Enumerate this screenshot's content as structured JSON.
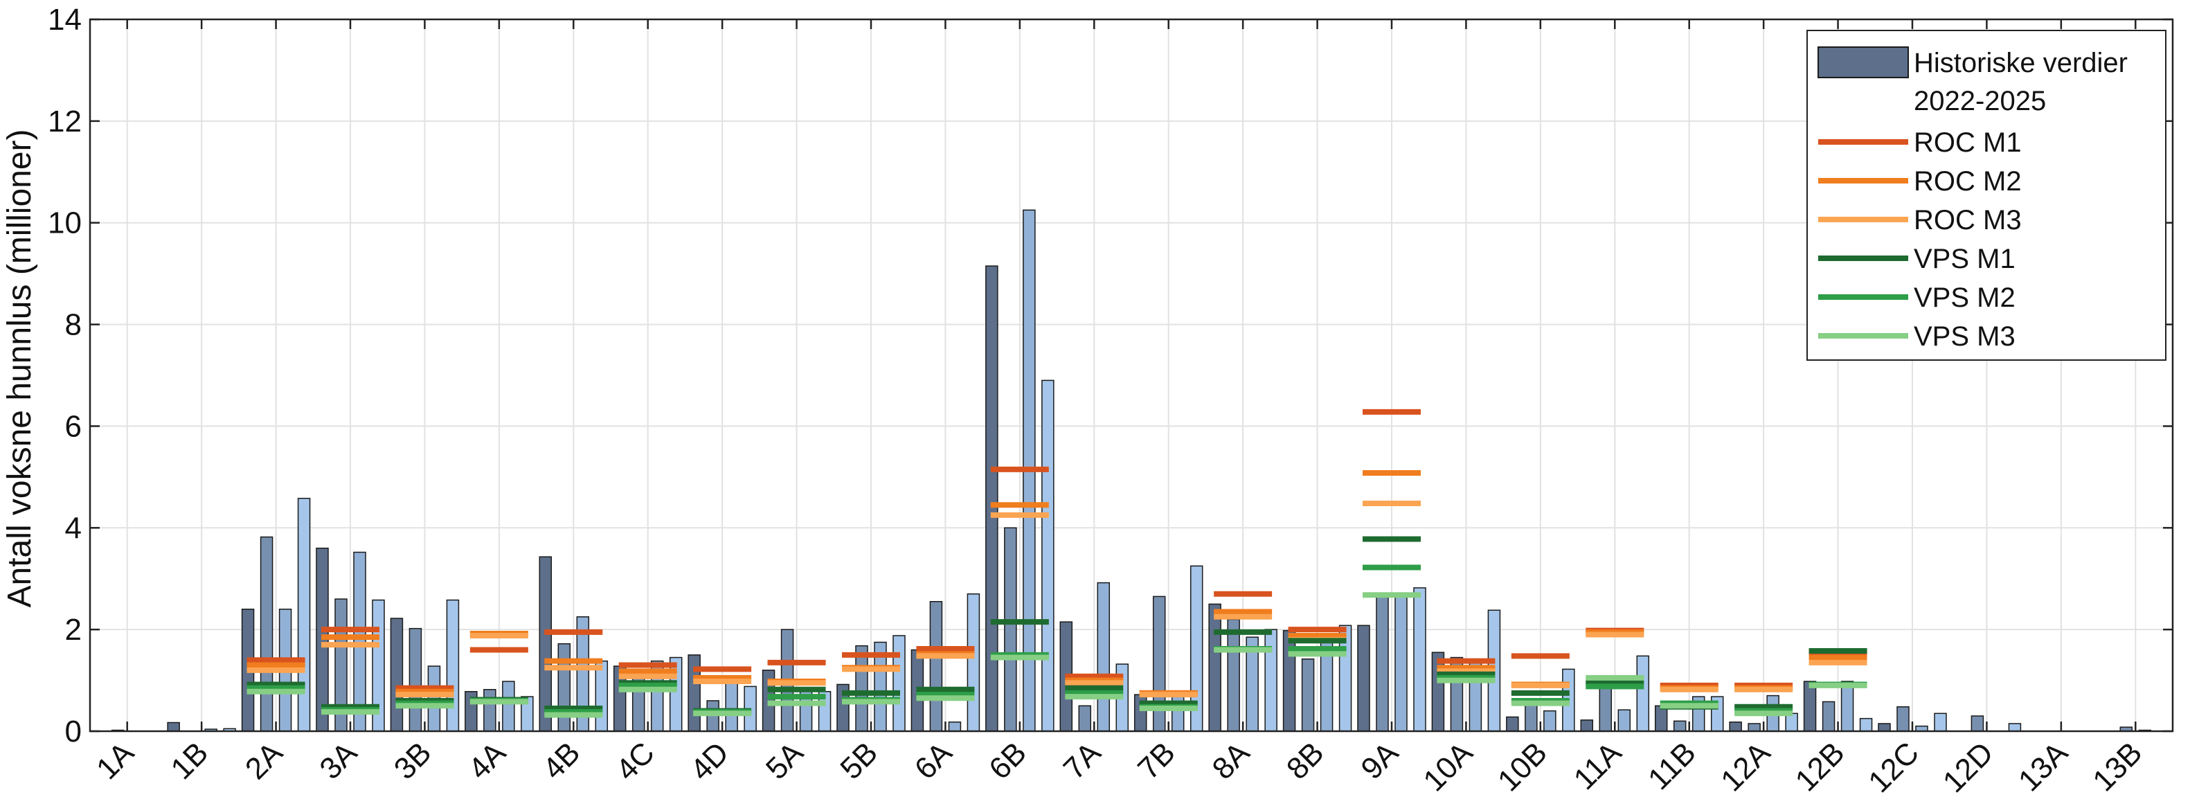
{
  "chart_data": {
    "type": "bar",
    "ylabel": "Antall voksne hunnlus (millioner)",
    "xlabel": "",
    "ylim": [
      0,
      14
    ],
    "yticks": [
      0,
      2,
      4,
      6,
      8,
      10,
      12,
      14
    ],
    "grid": true,
    "legend_position": "top-right",
    "categories": [
      "1A",
      "1B",
      "2A",
      "3A",
      "3B",
      "4A",
      "4B",
      "4C",
      "4D",
      "5A",
      "5B",
      "6A",
      "6B",
      "7A",
      "7B",
      "8A",
      "8B",
      "9A",
      "10A",
      "10B",
      "11A",
      "11B",
      "12A",
      "12B",
      "12C",
      "12D",
      "13A",
      "13B"
    ],
    "historical": {
      "name": "Historiske verdier 2022-2025",
      "years": [
        "2022",
        "2023",
        "2024",
        "2025"
      ],
      "values": [
        [
          0,
          0.02,
          0,
          0
        ],
        [
          0.17,
          0,
          0.04,
          0.05
        ],
        [
          2.4,
          3.82,
          2.4,
          4.58
        ],
        [
          3.6,
          2.6,
          3.52,
          2.58
        ],
        [
          2.22,
          2.02,
          1.28,
          2.58
        ],
        [
          0.78,
          0.82,
          0.98,
          0.68
        ],
        [
          3.43,
          1.72,
          2.25,
          1.38
        ],
        [
          1.28,
          1.2,
          1.38,
          1.45
        ],
        [
          1.5,
          0.6,
          0.95,
          0.88
        ],
        [
          1.2,
          2.0,
          0.82,
          0.78
        ],
        [
          0.92,
          1.68,
          1.75,
          1.88
        ],
        [
          1.6,
          2.55,
          0.18,
          2.7
        ],
        [
          9.15,
          4.0,
          10.25,
          6.9
        ],
        [
          2.15,
          0.5,
          2.92,
          1.32
        ],
        [
          0.72,
          2.65,
          0.72,
          3.25
        ],
        [
          2.5,
          2.2,
          1.85,
          2.0
        ],
        [
          1.98,
          1.42,
          1.88,
          2.08
        ],
        [
          2.08,
          2.65,
          2.72,
          2.82
        ],
        [
          1.55,
          1.45,
          1.35,
          2.38
        ],
        [
          0.28,
          0.6,
          0.4,
          1.22
        ],
        [
          0.22,
          0.95,
          0.42,
          1.48
        ],
        [
          0.5,
          0.2,
          0.68,
          0.68
        ],
        [
          0.18,
          0.15,
          0.7,
          0.35
        ],
        [
          0.98,
          0.58,
          0.98,
          0.25
        ],
        [
          0.15,
          0.48,
          0.1,
          0.35
        ],
        [
          0,
          0.3,
          0,
          0.15
        ],
        [
          0,
          0,
          0,
          0
        ],
        [
          0,
          0.08,
          0.02,
          0
        ]
      ]
    },
    "markers": [
      {
        "name": "ROC M1",
        "color": "#d9531e",
        "values": [
          null,
          null,
          1.4,
          2.0,
          0.85,
          1.6,
          1.95,
          1.3,
          1.22,
          1.35,
          1.5,
          1.62,
          5.15,
          1.08,
          0.75,
          2.7,
          2.0,
          6.28,
          1.38,
          1.48,
          1.98,
          0.9,
          0.9,
          1.55,
          null,
          null,
          null,
          null
        ]
      },
      {
        "name": "ROC M2",
        "color": "#f07d1e",
        "values": [
          null,
          null,
          1.3,
          1.85,
          0.78,
          1.92,
          1.38,
          1.18,
          1.05,
          0.98,
          1.25,
          1.52,
          4.45,
          1.0,
          0.75,
          2.35,
          1.88,
          5.08,
          1.25,
          0.92,
          1.95,
          0.85,
          0.85,
          1.45,
          null,
          null,
          null,
          null
        ]
      },
      {
        "name": "ROC M3",
        "color": "#fba452",
        "values": [
          null,
          null,
          1.2,
          1.7,
          0.72,
          1.88,
          1.25,
          1.08,
          0.98,
          0.95,
          1.22,
          1.48,
          4.25,
          0.95,
          0.72,
          2.25,
          1.8,
          4.48,
          1.18,
          0.9,
          1.9,
          0.82,
          0.82,
          1.35,
          null,
          null,
          null,
          null
        ]
      },
      {
        "name": "VPS M1",
        "color": "#1e6b30",
        "values": [
          null,
          null,
          0.92,
          0.48,
          0.6,
          0.62,
          0.45,
          0.95,
          0.4,
          0.82,
          0.75,
          0.82,
          2.15,
          0.85,
          0.55,
          1.95,
          1.78,
          3.78,
          1.12,
          0.75,
          0.95,
          0.48,
          0.48,
          1.58,
          null,
          null,
          null,
          null
        ]
      },
      {
        "name": "VPS M2",
        "color": "#2e9e48",
        "values": [
          null,
          null,
          0.85,
          0.42,
          0.55,
          0.6,
          0.38,
          0.9,
          0.38,
          0.68,
          0.62,
          0.72,
          1.5,
          0.75,
          0.48,
          1.62,
          1.62,
          3.22,
          1.05,
          0.6,
          0.88,
          0.55,
          0.4,
          0.92,
          null,
          null,
          null,
          null
        ]
      },
      {
        "name": "VPS M3",
        "color": "#86cf84",
        "values": [
          null,
          null,
          0.78,
          0.38,
          0.5,
          0.58,
          0.32,
          0.82,
          0.35,
          0.55,
          0.58,
          0.65,
          1.45,
          0.68,
          0.45,
          1.6,
          1.52,
          2.68,
          1.0,
          0.55,
          1.05,
          0.5,
          0.35,
          0.9,
          null,
          null,
          null,
          null
        ]
      }
    ],
    "legend": [
      {
        "label": "Historiske verdier",
        "label2": "2022-2025",
        "kind": "bar"
      },
      {
        "label": "ROC M1",
        "kind": "line",
        "color": "#d9531e"
      },
      {
        "label": "ROC M2",
        "kind": "line",
        "color": "#f07d1e"
      },
      {
        "label": "ROC M3",
        "kind": "line",
        "color": "#fba452"
      },
      {
        "label": "VPS M1",
        "kind": "line",
        "color": "#1e6b30"
      },
      {
        "label": "VPS M2",
        "kind": "line",
        "color": "#2e9e48"
      },
      {
        "label": "VPS M3",
        "kind": "line",
        "color": "#86cf84"
      }
    ],
    "colors": {
      "bar_gradient": [
        "#5d6f8a",
        "#7890b0",
        "#92b1d6",
        "#a5c6ea"
      ],
      "bar_stroke": "#1a1a1a",
      "grid": "#e2e2e2",
      "axis": "#222222"
    }
  }
}
